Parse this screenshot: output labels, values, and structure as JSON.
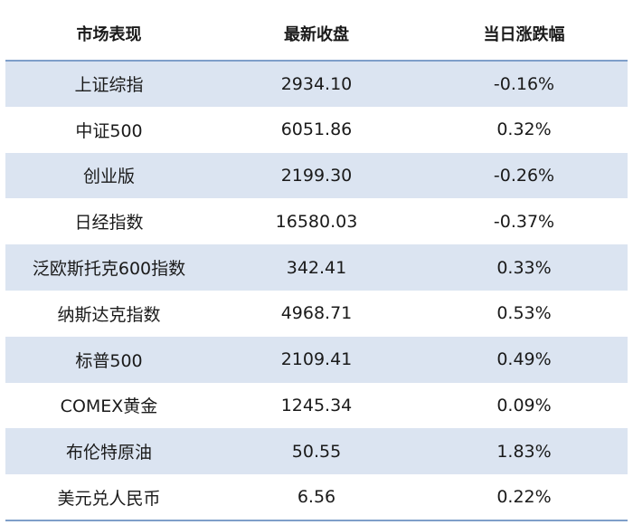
{
  "table": {
    "headers": [
      "市场表现",
      "最新收盘",
      "当日涨跌幅"
    ],
    "rows": [
      {
        "market": "上证综指",
        "close": "2934.10",
        "change": "-0.16%"
      },
      {
        "market": "中证500",
        "close": "6051.86",
        "change": "0.32%"
      },
      {
        "market": "创业版",
        "close": "2199.30",
        "change": "-0.26%"
      },
      {
        "market": "日经指数",
        "close": "16580.03",
        "change": "-0.37%"
      },
      {
        "market": "泛欧斯托克600指数",
        "close": "342.41",
        "change": "0.33%"
      },
      {
        "market": "纳斯达克指数",
        "close": "4968.71",
        "change": "0.53%"
      },
      {
        "market": "标普500",
        "close": "2109.41",
        "change": "0.49%"
      },
      {
        "market": "COMEX黄金",
        "close": "1245.34",
        "change": "0.09%"
      },
      {
        "market": "布伦特原油",
        "close": "50.55",
        "change": "1.83%"
      },
      {
        "market": "美元兑人民币",
        "close": "6.56",
        "change": "0.22%"
      }
    ]
  },
  "colors": {
    "stripe": "#dbe4f1",
    "rule": "#7f9fc9"
  }
}
